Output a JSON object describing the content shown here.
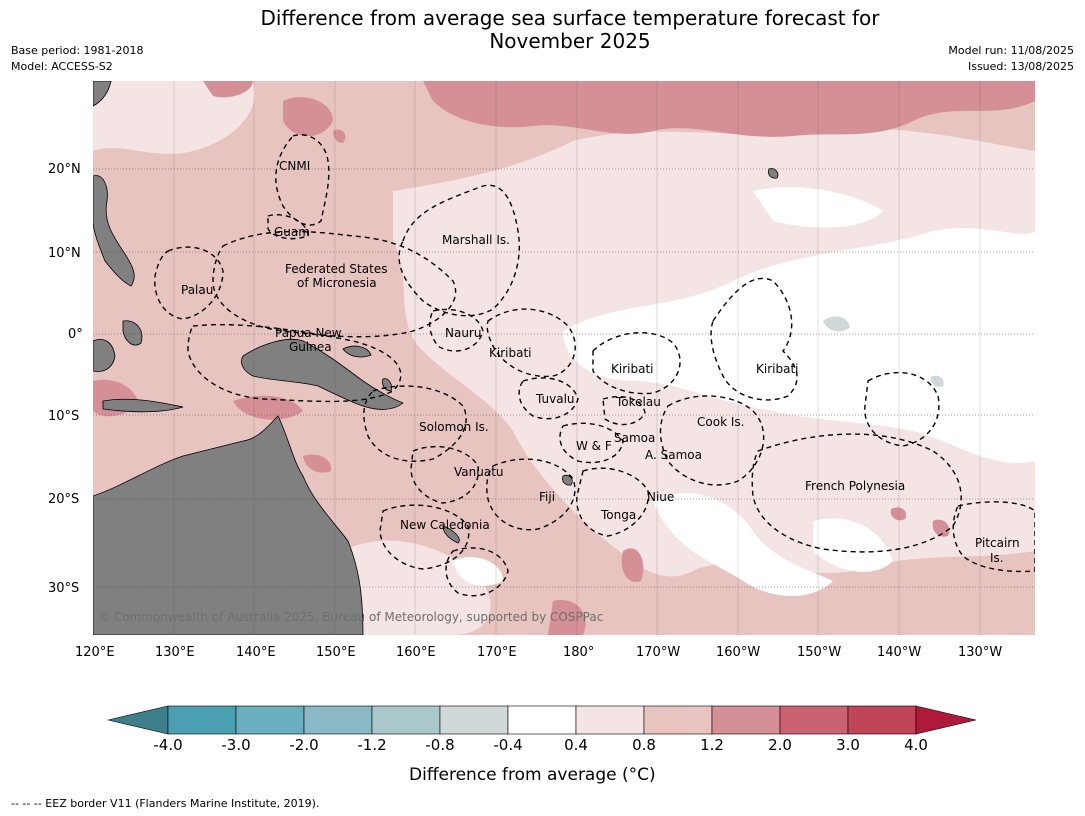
{
  "title": "Difference from average sea surface temperature forecast for November 2025",
  "title_line1": "Difference from average sea surface temperature forecast for",
  "title_line2": "November 2025",
  "base_period": "Base period: 1981-2018",
  "model": "Model: ACCESS-S2",
  "model_run": "Model run: 11/08/2025",
  "issued": "Issued: 13/08/2025",
  "longitude_labels": [
    "120°E",
    "130°E",
    "140°E",
    "150°E",
    "160°E",
    "170°E",
    "180°",
    "170°W",
    "160°W",
    "150°W",
    "140°W",
    "130°W"
  ],
  "latitude_labels": [
    "20°N",
    "10°N",
    "0°",
    "10°S",
    "20°S",
    "30°S"
  ],
  "places": [
    {
      "name": "CNMI"
    },
    {
      "name": "Guam"
    },
    {
      "name": "Marshall Is."
    },
    {
      "name": "Federated States"
    },
    {
      "name": "of Micronesia"
    },
    {
      "name": "Palau"
    },
    {
      "name": "Nauru"
    },
    {
      "name": "Papua New"
    },
    {
      "name": "Guinea"
    },
    {
      "name": "Kiribati"
    },
    {
      "name": "Kiribati"
    },
    {
      "name": "Kiribati"
    },
    {
      "name": "Tuvalu"
    },
    {
      "name": "Tokelau"
    },
    {
      "name": "Cook Is."
    },
    {
      "name": "Solomon Is."
    },
    {
      "name": "Samoa"
    },
    {
      "name": "W & F"
    },
    {
      "name": "A. Samoa"
    },
    {
      "name": "Vanuatu"
    },
    {
      "name": "Fiji"
    },
    {
      "name": "Niue"
    },
    {
      "name": "French Polynesia"
    },
    {
      "name": "Tonga"
    },
    {
      "name": "New Caledonia"
    },
    {
      "name": "Pitcairn"
    },
    {
      "name": "Is."
    }
  ],
  "copyright": "© Commonwealth of Australia 2025, Bureau of Meteorology, supported by COSPPac",
  "colorbar": {
    "title": "Difference from average (°C)",
    "ticks": [
      "-4.0",
      "-3.0",
      "-2.0",
      "-1.2",
      "-0.8",
      "-0.4",
      "0.4",
      "0.8",
      "1.2",
      "2.0",
      "3.0",
      "4.0"
    ],
    "colors": [
      "#3e7f8b",
      "#4aa0b2",
      "#6bafbf",
      "#8ab8c4",
      "#a8c8cc",
      "#d0d8da",
      "#ffffff",
      "#f4e4e3",
      "#e8c4c1",
      "#d58f97",
      "#c9636f",
      "#bf4456",
      "#b01a3a"
    ]
  },
  "footer": "--  --  -- EEZ border V11 (Flanders Marine Institute, 2019)."
}
